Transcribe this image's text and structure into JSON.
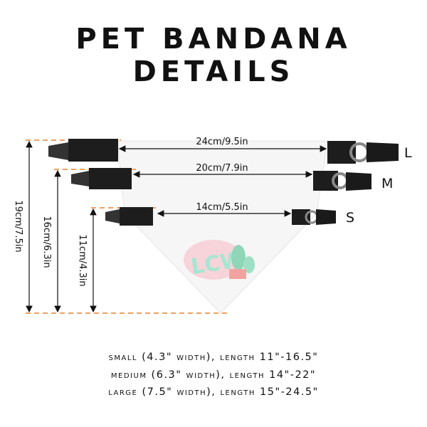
{
  "title": {
    "line1": "PET BANDANA",
    "line2": "DETAILS"
  },
  "widths": {
    "large": "24cm/9.5in",
    "medium": "20cm/7.9in",
    "small": "14cm/5.5in"
  },
  "heights": {
    "large": "19cm/7.5in",
    "medium": "16cm/6.3in",
    "small": "11cm/4.3in"
  },
  "size_labels": {
    "large": "L",
    "medium": "M",
    "small": "S"
  },
  "logo_text": "LCW",
  "specs": [
    "small (4.3\" width), length 11\"-16.5\"",
    "medium (6.3\" width), length 14\"-22\"",
    "large (7.5\" width), length 15\"-24.5\""
  ],
  "colors": {
    "dash": "#f0a060",
    "strap": "#1a1a1a",
    "fabric": "#f7f7f7",
    "logo": "#9fe3cf",
    "blush": "#f6c3cc"
  }
}
